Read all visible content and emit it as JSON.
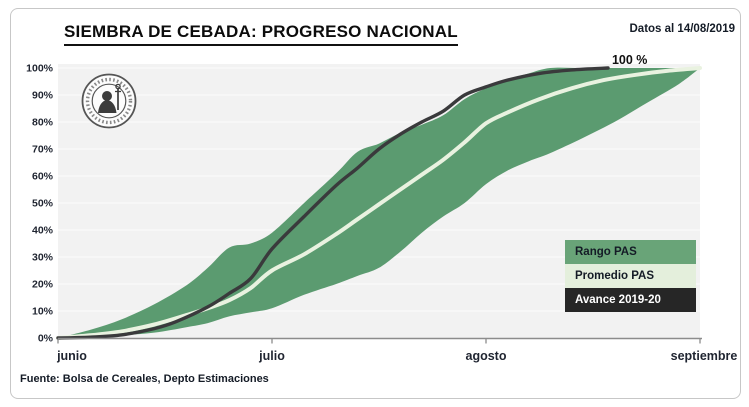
{
  "header": {
    "title": "SIEMBRA DE CEBADA: PROGRESO NACIONAL",
    "data_as_of": "Datos al 14/08/2019"
  },
  "footer": {
    "source": "Fuente: Bolsa de Cereales, Depto Estimaciones"
  },
  "legend": [
    {
      "label": "Rango PAS",
      "bg": "#69a478",
      "fg": "#141b26"
    },
    {
      "label": "Promedio PAS",
      "bg": "#e4efdc",
      "fg": "#141b26"
    },
    {
      "label": "Avance 2019-20",
      "bg": "#262626",
      "fg": "#ffffff"
    }
  ],
  "logo": {
    "name": "bolsa-de-cereales-seal"
  },
  "colors": {
    "plot_bg": "#f2f2f2",
    "grid": "#fafafa",
    "axis": "#8c8c8c",
    "tick_text": "#1f2430",
    "annotation_text": "#111111"
  },
  "chart_data": {
    "type": "area",
    "title": "SIEMBRA DE CEBADA: PROGRESO NACIONAL",
    "x_unit": "months from 1-junio",
    "y_unit": "% sown",
    "ylim": [
      0,
      100
    ],
    "grid": true,
    "legend_position": "inside-bottom-right",
    "annotation": {
      "text": "100 %",
      "at": [
        2.57,
        100
      ]
    },
    "x_ticks": [
      {
        "pos": 0,
        "label": "junio"
      },
      {
        "pos": 1,
        "label": "julio"
      },
      {
        "pos": 2,
        "label": "agosto"
      },
      {
        "pos": 3,
        "label": "septiembre"
      }
    ],
    "y_ticks": [
      "0%",
      "10%",
      "20%",
      "30%",
      "40%",
      "50%",
      "60%",
      "70%",
      "80%",
      "90%",
      "100%"
    ],
    "series": [
      {
        "name": "Rango PAS",
        "type": "band",
        "color": "#5b9b70",
        "points_t_lower_upper": [
          [
            0,
            0,
            0
          ],
          [
            0.15,
            0.5,
            3
          ],
          [
            0.3,
            1,
            7
          ],
          [
            0.45,
            2,
            12.5
          ],
          [
            0.6,
            4,
            19.5
          ],
          [
            0.7,
            5.5,
            26
          ],
          [
            0.8,
            8,
            33.5
          ],
          [
            0.9,
            9.5,
            35
          ],
          [
            1.0,
            11,
            39
          ],
          [
            1.15,
            16,
            50
          ],
          [
            1.3,
            20,
            61
          ],
          [
            1.4,
            23,
            69
          ],
          [
            1.5,
            26,
            72
          ],
          [
            1.6,
            32,
            76
          ],
          [
            1.7,
            39,
            79
          ],
          [
            1.8,
            45,
            82.5
          ],
          [
            1.9,
            50,
            88.5
          ],
          [
            2.0,
            57,
            92.5
          ],
          [
            2.1,
            62,
            95.5
          ],
          [
            2.2,
            65.5,
            98
          ],
          [
            2.3,
            68.5,
            100
          ],
          [
            2.45,
            74,
            100
          ],
          [
            2.6,
            80,
            100
          ],
          [
            2.75,
            87,
            100
          ],
          [
            2.9,
            94,
            100
          ],
          [
            3.0,
            100,
            100
          ]
        ]
      },
      {
        "name": "Promedio PAS",
        "type": "line",
        "color": "#e9f2e0",
        "stroke_width": 4,
        "points_t_value": [
          [
            0,
            0
          ],
          [
            0.15,
            1
          ],
          [
            0.3,
            2.5
          ],
          [
            0.45,
            5
          ],
          [
            0.6,
            8.5
          ],
          [
            0.7,
            11
          ],
          [
            0.8,
            14
          ],
          [
            0.9,
            18.5
          ],
          [
            1.0,
            25
          ],
          [
            1.15,
            31
          ],
          [
            1.3,
            38.5
          ],
          [
            1.4,
            44
          ],
          [
            1.5,
            49.5
          ],
          [
            1.6,
            55
          ],
          [
            1.7,
            60.5
          ],
          [
            1.8,
            66
          ],
          [
            1.9,
            72.5
          ],
          [
            2.0,
            79.5
          ],
          [
            2.1,
            83.5
          ],
          [
            2.25,
            88.5
          ],
          [
            2.4,
            92.5
          ],
          [
            2.55,
            95.5
          ],
          [
            2.7,
            97.5
          ],
          [
            2.85,
            99
          ],
          [
            3.0,
            100
          ]
        ]
      },
      {
        "name": "Avance 2019-20",
        "type": "line",
        "color": "#3a3a3c",
        "stroke_width": 3.4,
        "points_t_value": [
          [
            0,
            0
          ],
          [
            0.15,
            0.3
          ],
          [
            0.3,
            1.2
          ],
          [
            0.45,
            3.5
          ],
          [
            0.55,
            6
          ],
          [
            0.7,
            11.5
          ],
          [
            0.8,
            16.5
          ],
          [
            0.9,
            22
          ],
          [
            1.0,
            33
          ],
          [
            1.15,
            45
          ],
          [
            1.3,
            56.5
          ],
          [
            1.4,
            63
          ],
          [
            1.5,
            70
          ],
          [
            1.6,
            75.5
          ],
          [
            1.7,
            80
          ],
          [
            1.8,
            84
          ],
          [
            1.9,
            90
          ],
          [
            2.0,
            93
          ],
          [
            2.1,
            95.5
          ],
          [
            2.25,
            98
          ],
          [
            2.4,
            99.3
          ],
          [
            2.57,
            100
          ]
        ]
      }
    ]
  }
}
